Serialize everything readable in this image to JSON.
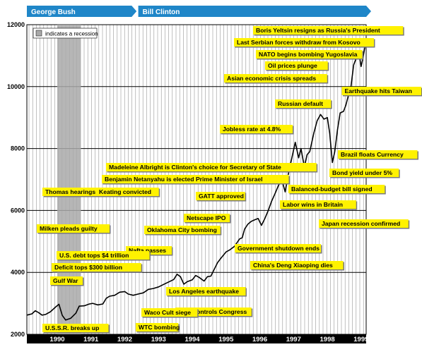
{
  "colors": {
    "era_banner": "#1f86c8",
    "annotation_bg": "#fff200",
    "recession": "#a9a9a9",
    "line": "#000000",
    "bottom_bar": "#000000"
  },
  "chart_data": {
    "type": "line",
    "title": "",
    "xlabel": "",
    "ylabel": "",
    "ylim": [
      2000,
      12000
    ],
    "xlim": [
      1989.6,
      1999.65
    ],
    "y_ticks": [
      "2000",
      "4000",
      "6000",
      "8000",
      "10000",
      "12000"
    ],
    "x_ticks": [
      "1990",
      "1991",
      "1992",
      "1993",
      "1994",
      "1995",
      "1996",
      "1997",
      "1998",
      "1999"
    ],
    "grid": true,
    "legend": {
      "label": "indicates a recession",
      "position": "top-left"
    },
    "recession": {
      "start": 1990.5,
      "end": 1991.2
    },
    "eras": [
      {
        "label": "George Bush",
        "start": 1989.6,
        "end": 1992.85
      },
      {
        "label": "Bill Clinton",
        "start": 1992.9,
        "end": 1999.65
      }
    ],
    "series": [
      {
        "values": [
          [
            1989.6,
            2620
          ],
          [
            1989.75,
            2660
          ],
          [
            1989.85,
            2760
          ],
          [
            1989.95,
            2700
          ],
          [
            1990.05,
            2620
          ],
          [
            1990.15,
            2640
          ],
          [
            1990.3,
            2730
          ],
          [
            1990.45,
            2880
          ],
          [
            1990.55,
            2970
          ],
          [
            1990.65,
            2610
          ],
          [
            1990.75,
            2460
          ],
          [
            1990.9,
            2520
          ],
          [
            1991.05,
            2680
          ],
          [
            1991.15,
            2910
          ],
          [
            1991.3,
            2920
          ],
          [
            1991.45,
            2980
          ],
          [
            1991.55,
            3000
          ],
          [
            1991.7,
            2950
          ],
          [
            1991.85,
            2980
          ],
          [
            1991.95,
            3160
          ],
          [
            1992.05,
            3230
          ],
          [
            1992.2,
            3260
          ],
          [
            1992.35,
            3360
          ],
          [
            1992.5,
            3380
          ],
          [
            1992.6,
            3300
          ],
          [
            1992.75,
            3260
          ],
          [
            1992.9,
            3300
          ],
          [
            1993.05,
            3340
          ],
          [
            1993.2,
            3450
          ],
          [
            1993.35,
            3480
          ],
          [
            1993.5,
            3530
          ],
          [
            1993.65,
            3610
          ],
          [
            1993.8,
            3690
          ],
          [
            1993.95,
            3770
          ],
          [
            1994.05,
            3940
          ],
          [
            1994.15,
            3860
          ],
          [
            1994.25,
            3620
          ],
          [
            1994.35,
            3700
          ],
          [
            1994.5,
            3760
          ],
          [
            1994.6,
            3900
          ],
          [
            1994.7,
            3840
          ],
          [
            1994.85,
            3720
          ],
          [
            1994.95,
            3860
          ],
          [
            1995.05,
            3880
          ],
          [
            1995.15,
            4100
          ],
          [
            1995.25,
            4320
          ],
          [
            1995.35,
            4460
          ],
          [
            1995.5,
            4660
          ],
          [
            1995.6,
            4720
          ],
          [
            1995.75,
            4840
          ],
          [
            1995.9,
            5080
          ],
          [
            1995.98,
            5120
          ],
          [
            1996.05,
            5400
          ],
          [
            1996.15,
            5560
          ],
          [
            1996.25,
            5650
          ],
          [
            1996.35,
            5700
          ],
          [
            1996.45,
            5740
          ],
          [
            1996.55,
            5520
          ],
          [
            1996.65,
            5740
          ],
          [
            1996.75,
            6000
          ],
          [
            1996.85,
            6300
          ],
          [
            1996.95,
            6540
          ],
          [
            1997.05,
            6800
          ],
          [
            1997.15,
            7000
          ],
          [
            1997.25,
            6600
          ],
          [
            1997.35,
            7200
          ],
          [
            1997.45,
            7700
          ],
          [
            1997.55,
            8200
          ],
          [
            1997.65,
            7700
          ],
          [
            1997.72,
            8000
          ],
          [
            1997.82,
            7400
          ],
          [
            1997.9,
            7800
          ],
          [
            1997.98,
            7900
          ],
          [
            1998.1,
            8500
          ],
          [
            1998.2,
            8900
          ],
          [
            1998.3,
            9100
          ],
          [
            1998.4,
            8950
          ],
          [
            1998.5,
            9000
          ],
          [
            1998.57,
            8500
          ],
          [
            1998.65,
            7550
          ],
          [
            1998.72,
            7900
          ],
          [
            1998.8,
            8600
          ],
          [
            1998.88,
            9150
          ],
          [
            1998.98,
            9200
          ],
          [
            1999.05,
            9400
          ],
          [
            1999.12,
            9700
          ],
          [
            1999.2,
            10000
          ],
          [
            1999.28,
            10700
          ],
          [
            1999.35,
            10900
          ],
          [
            1999.45,
            11000
          ],
          [
            1999.5,
            10650
          ],
          [
            1999.55,
            10900
          ],
          [
            1999.6,
            11200
          ],
          [
            1999.65,
            11450
          ]
        ]
      }
    ],
    "annotations": [
      {
        "text": "Boris Yeltsin resigns as Russia's President",
        "x": 1999.65,
        "y": 11450
      },
      {
        "text": "Last Serbian forces withdraw from Kosovo",
        "x": 1999.5,
        "y": 10700
      },
      {
        "text": "NATO begins bombing Yugoslavia",
        "x": 1999.25,
        "y": 10000
      },
      {
        "text": "Oil prices plunge",
        "x": 1998.9,
        "y": 9200
      },
      {
        "text": "Asian economic crisis spreads",
        "x": 1997.75,
        "y": 7900
      },
      {
        "text": "Earthquake hits Taiwan",
        "x": 1999.62,
        "y": 10850
      },
      {
        "text": "Russian default",
        "x": 1998.6,
        "y": 8300
      },
      {
        "text": "Jobless rate at 4.8%",
        "x": 1997.3,
        "y": 6900
      },
      {
        "text": "Brazil floats Currency",
        "x": 1999.05,
        "y": 9200
      },
      {
        "text": "Madeleine Albright is Clinton's choice for Secretary of State",
        "x": 1996.9,
        "y": 6500
      },
      {
        "text": "Bond yield under 5%",
        "x": 1998.75,
        "y": 7900
      },
      {
        "text": "Benjamin Netanyahu is elected Prime Minister of Israel",
        "x": 1996.4,
        "y": 5700
      },
      {
        "text": "Balanced-budget bill signed",
        "x": 1997.55,
        "y": 8100
      },
      {
        "text": "Thomas hearings",
        "x": 1991.75,
        "y": 2980
      },
      {
        "text": "Keating convicted",
        "x": 1991.95,
        "y": 3160
      },
      {
        "text": "Labor wins in Britain",
        "x": 1997.35,
        "y": 7200
      },
      {
        "text": "GATT approved",
        "x": 1994.95,
        "y": 3860
      },
      {
        "text": "Netscape IPO",
        "x": 1995.6,
        "y": 4720
      },
      {
        "text": "Japan recession confirmed",
        "x": 1998.5,
        "y": 9000
      },
      {
        "text": "Milken pleads guilty",
        "x": 1990.3,
        "y": 2720
      },
      {
        "text": "Oklahoma City bombing",
        "x": 1995.3,
        "y": 4400
      },
      {
        "text": "Government shutdown ends",
        "x": 1996.1,
        "y": 5500
      },
      {
        "text": "Nafta passes",
        "x": 1993.9,
        "y": 3750
      },
      {
        "text": "China's Deng Xiaoping dies",
        "x": 1997.15,
        "y": 7000
      },
      {
        "text": "U.S. debt tops $4 trillion",
        "x": 1992.35,
        "y": 3360
      },
      {
        "text": "Deficit tops $300 billion",
        "x": 1992.45,
        "y": 3380
      },
      {
        "text": "Los Angeles earthquake",
        "x": 1994.0,
        "y": 3900
      },
      {
        "text": "Gulf War",
        "x": 1991.05,
        "y": 2680
      },
      {
        "text": "GOP controls Congress",
        "x": 1994.85,
        "y": 3720
      },
      {
        "text": "Waco Cult siege",
        "x": 1993.25,
        "y": 3450
      },
      {
        "text": "U.S.S.R. breaks up",
        "x": 1991.95,
        "y": 3160
      },
      {
        "text": "WTC bombing",
        "x": 1993.15,
        "y": 3400
      }
    ]
  }
}
